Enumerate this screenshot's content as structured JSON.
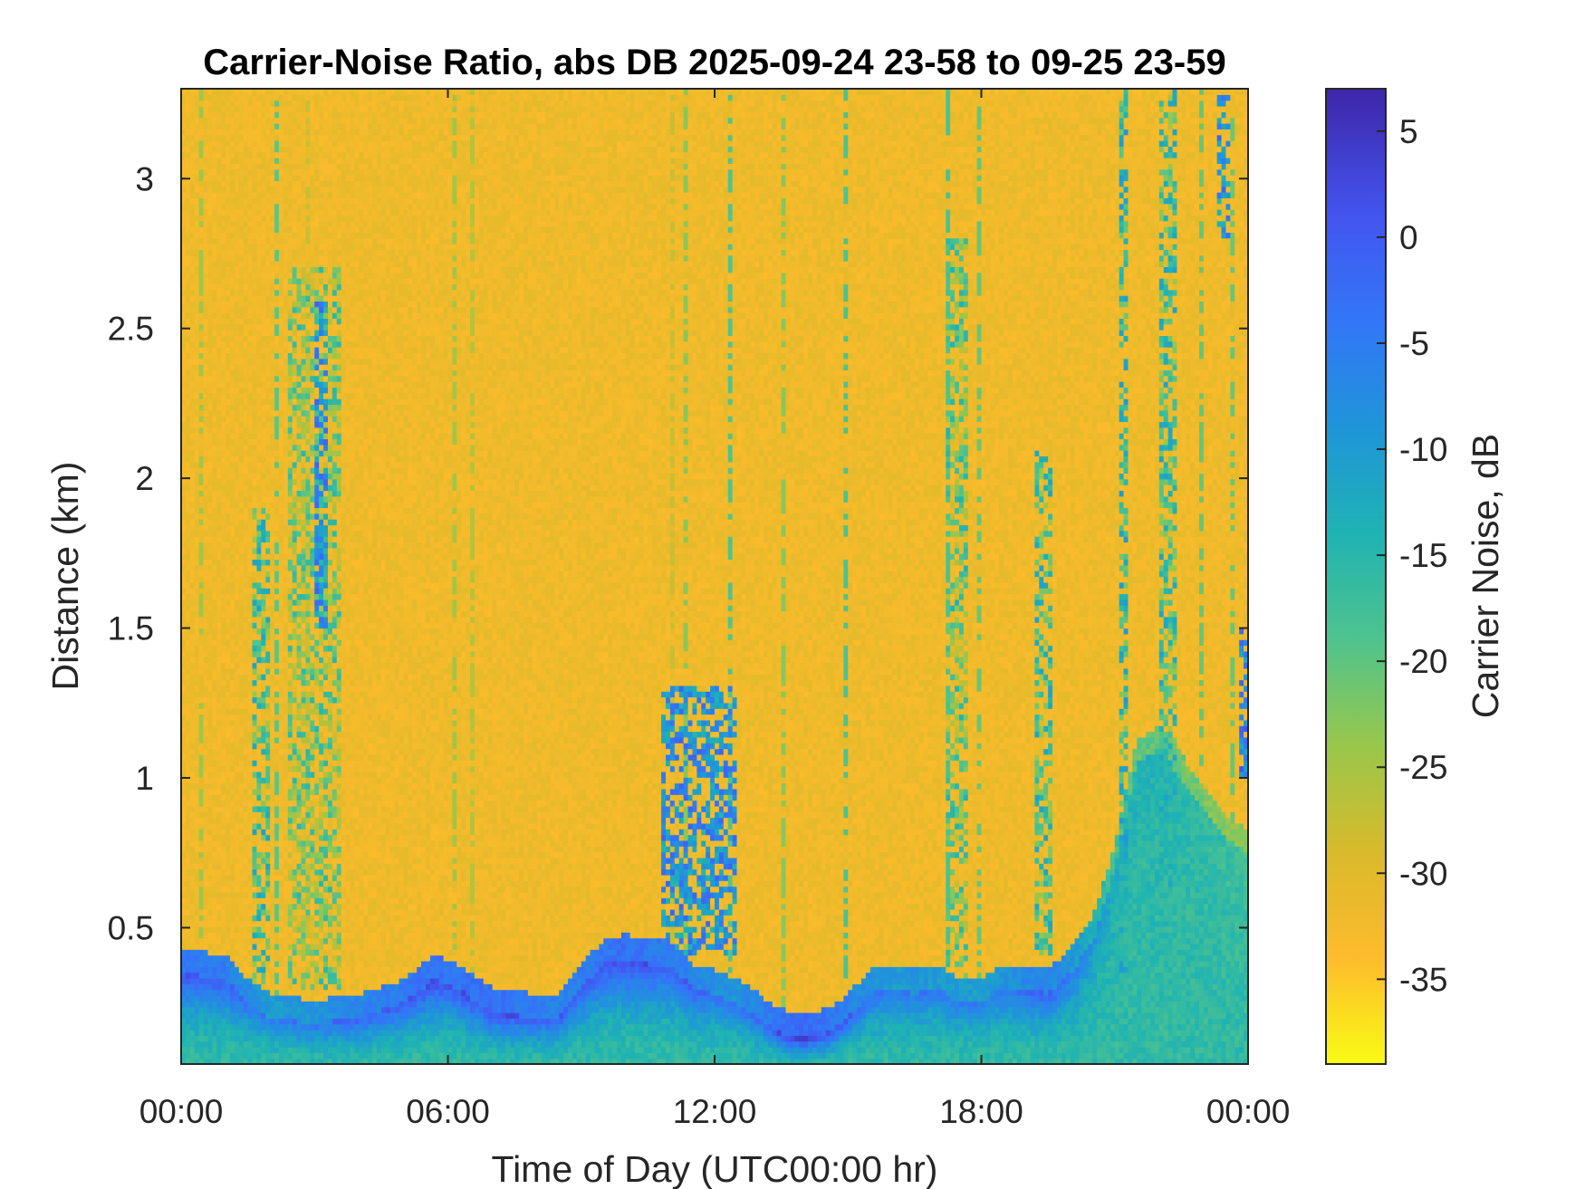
{
  "chart_data": {
    "type": "heatmap",
    "title": "Carrier-Noise Ratio, abs DB 2025-09-24 23-58 to 09-25 23-59",
    "xlabel": "Time of Day (UTC00:00 hr)",
    "ylabel": "Distance (km)",
    "xlim": [
      0,
      24
    ],
    "ylim": [
      0.045,
      3.3
    ],
    "x_ticks": [
      0,
      6,
      12,
      18,
      24
    ],
    "x_tick_labels": [
      "00:00",
      "06:00",
      "12:00",
      "18:00",
      "00:00"
    ],
    "y_ticks": [
      0.5,
      1,
      1.5,
      2,
      2.5,
      3
    ],
    "y_tick_labels": [
      "0.5",
      "1",
      "1.5",
      "2",
      "2.5",
      "3"
    ],
    "grid": false,
    "colorbar": {
      "label": "Carrier Noise, dB",
      "range": [
        -39,
        7
      ],
      "ticks": [
        5,
        0,
        -5,
        -10,
        -15,
        -20,
        -25,
        -30,
        -35
      ],
      "tick_labels": [
        "5",
        "0",
        "-5",
        "-10",
        "-15",
        "-20",
        "-25",
        "-30",
        "-35"
      ],
      "colormap": "parula (reversed)",
      "colormap_stops": [
        {
          "value": -39,
          "color": "#f9fb15"
        },
        {
          "value": -34,
          "color": "#fdbb2c"
        },
        {
          "value": -29,
          "color": "#d9ba2b"
        },
        {
          "value": -24,
          "color": "#99c74b"
        },
        {
          "value": -19,
          "color": "#4fc38d"
        },
        {
          "value": -14,
          "color": "#1fb3b3"
        },
        {
          "value": -9,
          "color": "#1f95d9"
        },
        {
          "value": -4,
          "color": "#3277f7"
        },
        {
          "value": 1,
          "color": "#4355f0"
        },
        {
          "value": 7,
          "color": "#3e26a8"
        }
      ]
    },
    "background_value_db": -32,
    "surface_layer": {
      "time_hr": [
        0,
        1,
        1.5,
        2,
        3,
        4,
        5,
        5.7,
        6.2,
        7,
        8,
        8.5,
        9,
        9.5,
        10,
        10.5,
        11,
        11.5,
        12,
        12.5,
        13,
        13.5,
        14,
        14.5,
        15,
        15.5,
        16,
        16.5,
        17,
        17.5,
        18,
        18.5,
        19,
        19.5,
        20,
        20.5,
        21,
        21.5,
        22,
        22.5,
        23,
        23.5,
        24
      ],
      "top_km": [
        0.35,
        0.33,
        0.25,
        0.2,
        0.18,
        0.2,
        0.25,
        0.33,
        0.3,
        0.22,
        0.2,
        0.2,
        0.3,
        0.38,
        0.4,
        0.38,
        0.38,
        0.3,
        0.28,
        0.25,
        0.2,
        0.15,
        0.13,
        0.15,
        0.2,
        0.28,
        0.3,
        0.28,
        0.3,
        0.25,
        0.25,
        0.3,
        0.3,
        0.28,
        0.35,
        0.45,
        0.7,
        1.05,
        1.1,
        1.0,
        0.9,
        0.8,
        0.75
      ],
      "intensity_db": [
        1,
        1,
        -2,
        -4,
        -3,
        0,
        1,
        3,
        2,
        3,
        1,
        0,
        1,
        2,
        3,
        2,
        1,
        0,
        -2,
        -3,
        0,
        3,
        4,
        3,
        0,
        -2,
        -4,
        -3,
        -4,
        -5,
        -4,
        -3,
        -1,
        0,
        -3,
        -8,
        -12,
        -14,
        -14,
        -15,
        -16,
        -17,
        -18
      ]
    },
    "plumes": [
      {
        "t0": 1.6,
        "t1": 2.0,
        "z0": 0.2,
        "z1": 1.9,
        "db": -18
      },
      {
        "t0": 2.4,
        "t1": 3.6,
        "z0": 0.3,
        "z1": 2.7,
        "db": -22
      },
      {
        "t0": 3.0,
        "t1": 3.3,
        "z0": 1.5,
        "z1": 2.6,
        "db": -8
      },
      {
        "t0": 10.8,
        "t1": 12.5,
        "z0": 0.4,
        "z1": 1.3,
        "db": -8
      },
      {
        "t0": 17.2,
        "t1": 17.7,
        "z0": 0.3,
        "z1": 2.8,
        "db": -21
      },
      {
        "t0": 19.2,
        "t1": 19.6,
        "z0": 0.4,
        "z1": 2.1,
        "db": -18
      },
      {
        "t0": 21.1,
        "t1": 21.3,
        "z0": 0.3,
        "z1": 3.3,
        "db": -16
      },
      {
        "t0": 22.0,
        "t1": 22.4,
        "z0": 0.6,
        "z1": 3.3,
        "db": -18
      },
      {
        "t0": 23.3,
        "t1": 23.6,
        "z0": 2.8,
        "z1": 3.3,
        "db": -8
      },
      {
        "t0": 23.8,
        "t1": 24.0,
        "z0": 1.0,
        "z1": 1.5,
        "db": -6
      }
    ]
  }
}
